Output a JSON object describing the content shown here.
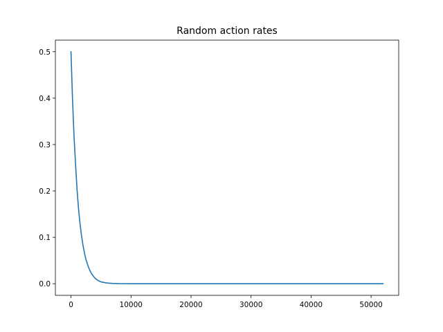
{
  "chart_data": {
    "type": "line",
    "title": "Random action rates",
    "xlabel": "",
    "ylabel": "",
    "xlim": [
      -2600,
      54600
    ],
    "ylim": [
      -0.025,
      0.525
    ],
    "x_ticks": [
      0,
      10000,
      20000,
      30000,
      40000,
      50000
    ],
    "x_tick_labels": [
      "0",
      "10000",
      "20000",
      "30000",
      "40000",
      "50000"
    ],
    "y_ticks": [
      0.0,
      0.1,
      0.2,
      0.3,
      0.4,
      0.5
    ],
    "y_tick_labels": [
      "0.0",
      "0.1",
      "0.2",
      "0.3",
      "0.4",
      "0.5"
    ],
    "grid": false,
    "series": [
      {
        "color": "#1f77b4",
        "x": [
          0,
          250,
          500,
          750,
          1000,
          1250,
          1500,
          1750,
          2000,
          2250,
          2500,
          2750,
          3000,
          3250,
          3500,
          4000,
          4500,
          5000,
          6000,
          7000,
          8000,
          10000,
          15000,
          20000,
          30000,
          40000,
          52000
        ],
        "y": [
          0.5,
          0.4,
          0.32,
          0.26,
          0.205,
          0.163,
          0.13,
          0.104,
          0.083,
          0.066,
          0.052,
          0.042,
          0.033,
          0.026,
          0.02,
          0.012,
          0.007,
          0.004,
          0.0015,
          0.0006,
          0.0002,
          0.0,
          0.0,
          0.0,
          0.0,
          0.0,
          0.0
        ]
      }
    ]
  }
}
